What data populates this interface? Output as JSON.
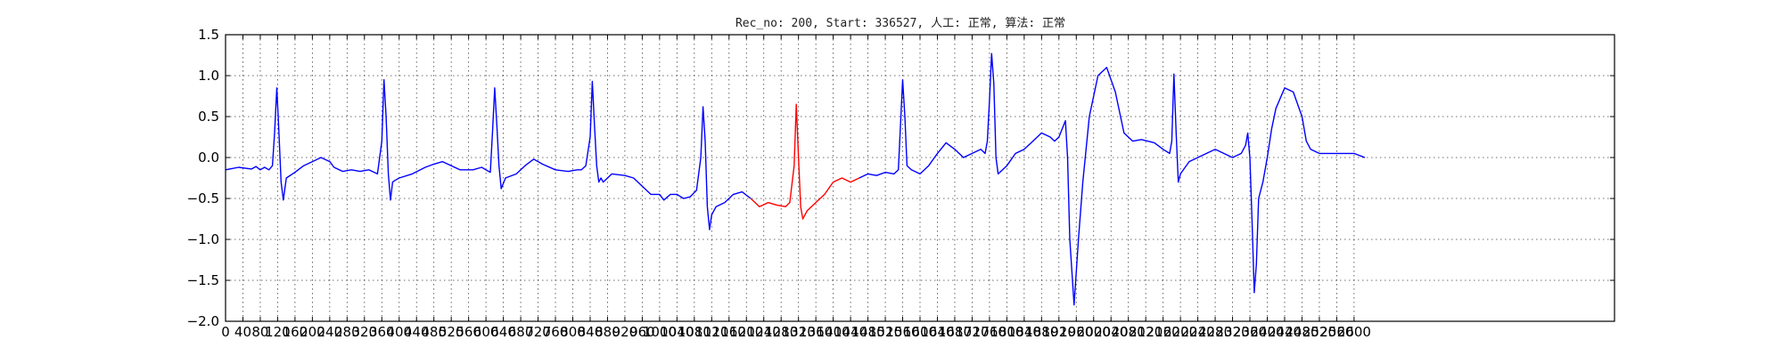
{
  "chart_data": {
    "type": "line",
    "title": "Rec_no: 200, Start: 336527, 人工: 正常, 算法: 正常",
    "xlabel": "",
    "ylabel": "",
    "xlim": [
      0,
      3200
    ],
    "ylim": [
      -2.0,
      1.5
    ],
    "grid": true,
    "x_ticks": [
      0,
      40,
      80,
      120,
      160,
      200,
      240,
      280,
      320,
      360,
      400,
      440,
      480,
      520,
      560,
      600,
      640,
      680,
      720,
      760,
      800,
      840,
      880,
      920,
      960,
      1000,
      1040,
      1080,
      1120,
      1160,
      1200,
      1240,
      1280,
      1320,
      1360,
      1400,
      1440,
      1480,
      1520,
      1560,
      1600,
      1640,
      1680,
      1720,
      1760,
      1800,
      1840,
      1880,
      1920,
      1960,
      2000,
      2040,
      2080,
      2120,
      2160,
      2200,
      2240,
      2280,
      2320,
      2360,
      2400,
      2440,
      2480,
      2520,
      2560,
      2600
    ],
    "y_ticks": [
      -2.0,
      -1.5,
      -1.0,
      -0.5,
      0.0,
      0.5,
      1.0,
      1.5
    ],
    "y_tick_labels": [
      "−2.0",
      "−1.5",
      "−1.0",
      "−0.5",
      "0.0",
      "0.5",
      "1.0",
      "1.5"
    ],
    "series": [
      {
        "color": "#0000ff",
        "x": [
          0,
          30,
          60,
          70,
          80,
          90,
          100,
          108,
          113,
          118,
          123,
          128,
          133,
          140,
          160,
          180,
          200,
          220,
          240,
          250,
          270,
          290,
          310,
          330,
          350,
          360,
          365,
          370,
          375,
          380,
          385,
          390,
          400,
          430,
          460,
          480,
          500,
          520,
          540,
          570,
          590,
          600,
          610,
          615,
          620,
          625,
          630,
          635,
          645,
          670,
          690,
          710,
          730,
          760,
          790,
          810,
          820,
          830,
          840,
          845,
          850,
          855,
          860,
          865,
          870,
          890,
          920,
          940,
          960,
          980,
          1000,
          1010,
          1025,
          1040,
          1055,
          1070,
          1085,
          1095,
          1100,
          1105,
          1110,
          1115,
          1120,
          1130,
          1150,
          1170,
          1190,
          1210
        ],
        "y": [
          -0.15,
          -0.12,
          -0.14,
          -0.11,
          -0.15,
          -0.12,
          -0.15,
          -0.1,
          0.3,
          0.85,
          0.3,
          -0.3,
          -0.52,
          -0.25,
          -0.18,
          -0.1,
          -0.05,
          0.0,
          -0.05,
          -0.12,
          -0.17,
          -0.15,
          -0.17,
          -0.15,
          -0.2,
          0.2,
          0.95,
          0.5,
          -0.2,
          -0.52,
          -0.3,
          -0.28,
          -0.25,
          -0.2,
          -0.12,
          -0.08,
          -0.05,
          -0.1,
          -0.15,
          -0.15,
          -0.12,
          -0.15,
          -0.18,
          0.3,
          0.85,
          0.4,
          -0.1,
          -0.38,
          -0.25,
          -0.2,
          -0.1,
          -0.02,
          -0.08,
          -0.15,
          -0.17,
          -0.15,
          -0.15,
          -0.1,
          0.25,
          0.93,
          0.4,
          -0.1,
          -0.3,
          -0.25,
          -0.3,
          -0.2,
          -0.22,
          -0.25,
          -0.35,
          -0.45,
          -0.45,
          -0.52,
          -0.45,
          -0.45,
          -0.5,
          -0.48,
          -0.4,
          0.0,
          0.62,
          0.2,
          -0.6,
          -0.88,
          -0.7,
          -0.6,
          -0.55,
          -0.45,
          -0.42,
          -0.5
        ]
      },
      {
        "color": "#ff0000",
        "x": [
          1210,
          1230,
          1250,
          1270,
          1290,
          1300,
          1310,
          1315,
          1320,
          1325,
          1330,
          1340,
          1360,
          1380,
          1400,
          1420,
          1440,
          1460
        ],
        "y": [
          -0.5,
          -0.6,
          -0.55,
          -0.58,
          -0.6,
          -0.55,
          -0.1,
          0.65,
          0.0,
          -0.6,
          -0.75,
          -0.65,
          -0.55,
          -0.45,
          -0.3,
          -0.25,
          -0.3,
          -0.25
        ]
      },
      {
        "color": "#0000ff",
        "x": [
          1460,
          1480,
          1500,
          1520,
          1540,
          1550,
          1555,
          1560,
          1565,
          1570,
          1580,
          1600,
          1620,
          1640,
          1660,
          1680,
          1700,
          1720,
          1740,
          1750,
          1755,
          1760,
          1765,
          1770,
          1775,
          1780,
          1800,
          1820,
          1840,
          1860,
          1880,
          1900,
          1910,
          1920,
          1935,
          1940,
          1945,
          1955,
          1965,
          1975,
          1990,
          2010,
          2030,
          2050,
          2070,
          2090,
          2110,
          2140,
          2160,
          2175,
          2180,
          2185,
          2190,
          2195,
          2200,
          2220,
          2240,
          2260,
          2280,
          2300,
          2320,
          2340,
          2350,
          2355,
          2360,
          2365,
          2370,
          2375,
          2380,
          2390,
          2400,
          2410,
          2420,
          2440,
          2460,
          2480,
          2490,
          2500,
          2520,
          2540,
          2560,
          2580,
          2600,
          2615,
          2625
        ],
        "y": [
          -0.25,
          -0.2,
          -0.22,
          -0.18,
          -0.2,
          -0.15,
          0.4,
          0.95,
          0.5,
          -0.1,
          -0.15,
          -0.2,
          -0.1,
          0.05,
          0.18,
          0.1,
          0.0,
          0.05,
          0.1,
          0.05,
          0.2,
          0.7,
          1.27,
          0.9,
          0.0,
          -0.2,
          -0.1,
          0.05,
          0.1,
          0.2,
          0.3,
          0.25,
          0.2,
          0.25,
          0.45,
          0.0,
          -1.0,
          -1.8,
          -1.0,
          -0.3,
          0.5,
          1.0,
          1.1,
          0.8,
          0.3,
          0.2,
          0.22,
          0.18,
          0.1,
          0.05,
          0.2,
          1.02,
          0.3,
          -0.3,
          -0.2,
          -0.05,
          0.0,
          0.05,
          0.1,
          0.05,
          0.0,
          0.05,
          0.15,
          0.3,
          0.0,
          -0.8,
          -1.65,
          -1.3,
          -0.5,
          -0.3,
          0.0,
          0.35,
          0.6,
          0.85,
          0.8,
          0.5,
          0.2,
          0.1,
          0.05,
          0.05,
          0.05,
          0.05,
          0.05,
          0.02,
          0.0
        ]
      }
    ]
  }
}
